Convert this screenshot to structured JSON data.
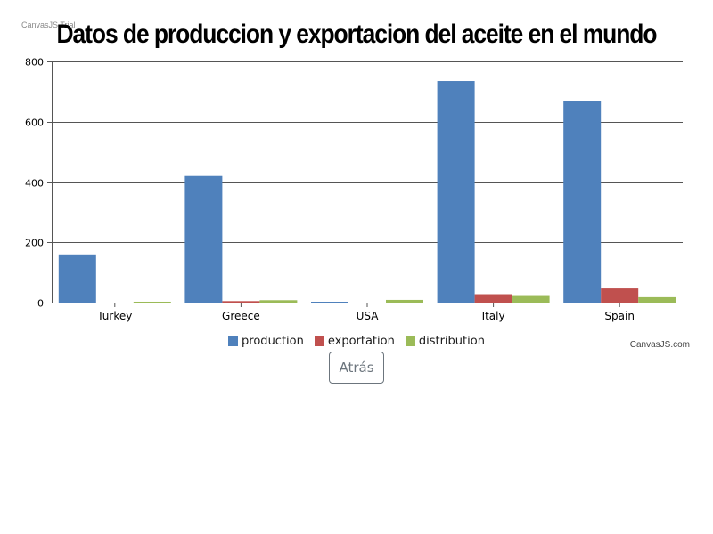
{
  "trial_text": "CanvasJS Trial",
  "credit_text": "CanvasJS.com",
  "back_button_label": "Atrás",
  "chart_data": {
    "type": "bar",
    "title": "Datos de produccion y exportacion del aceite en el mundo",
    "xlabel": "",
    "ylabel": "",
    "ylim": [
      0,
      800
    ],
    "yticks": [
      0,
      200,
      400,
      600,
      800
    ],
    "grid": true,
    "legend": "bottom-center",
    "categories": [
      "Turkey",
      "Greece",
      "USA",
      "Italy",
      "Spain"
    ],
    "series": [
      {
        "name": "production",
        "color": "#4f81bc",
        "values": [
          160,
          420,
          2,
          735,
          668
        ]
      },
      {
        "name": "exportation",
        "color": "#c0504e",
        "values": [
          0,
          5,
          0,
          28,
          47
        ]
      },
      {
        "name": "distribution",
        "color": "#9bbb58",
        "values": [
          3,
          8,
          9,
          22,
          18
        ]
      }
    ]
  }
}
